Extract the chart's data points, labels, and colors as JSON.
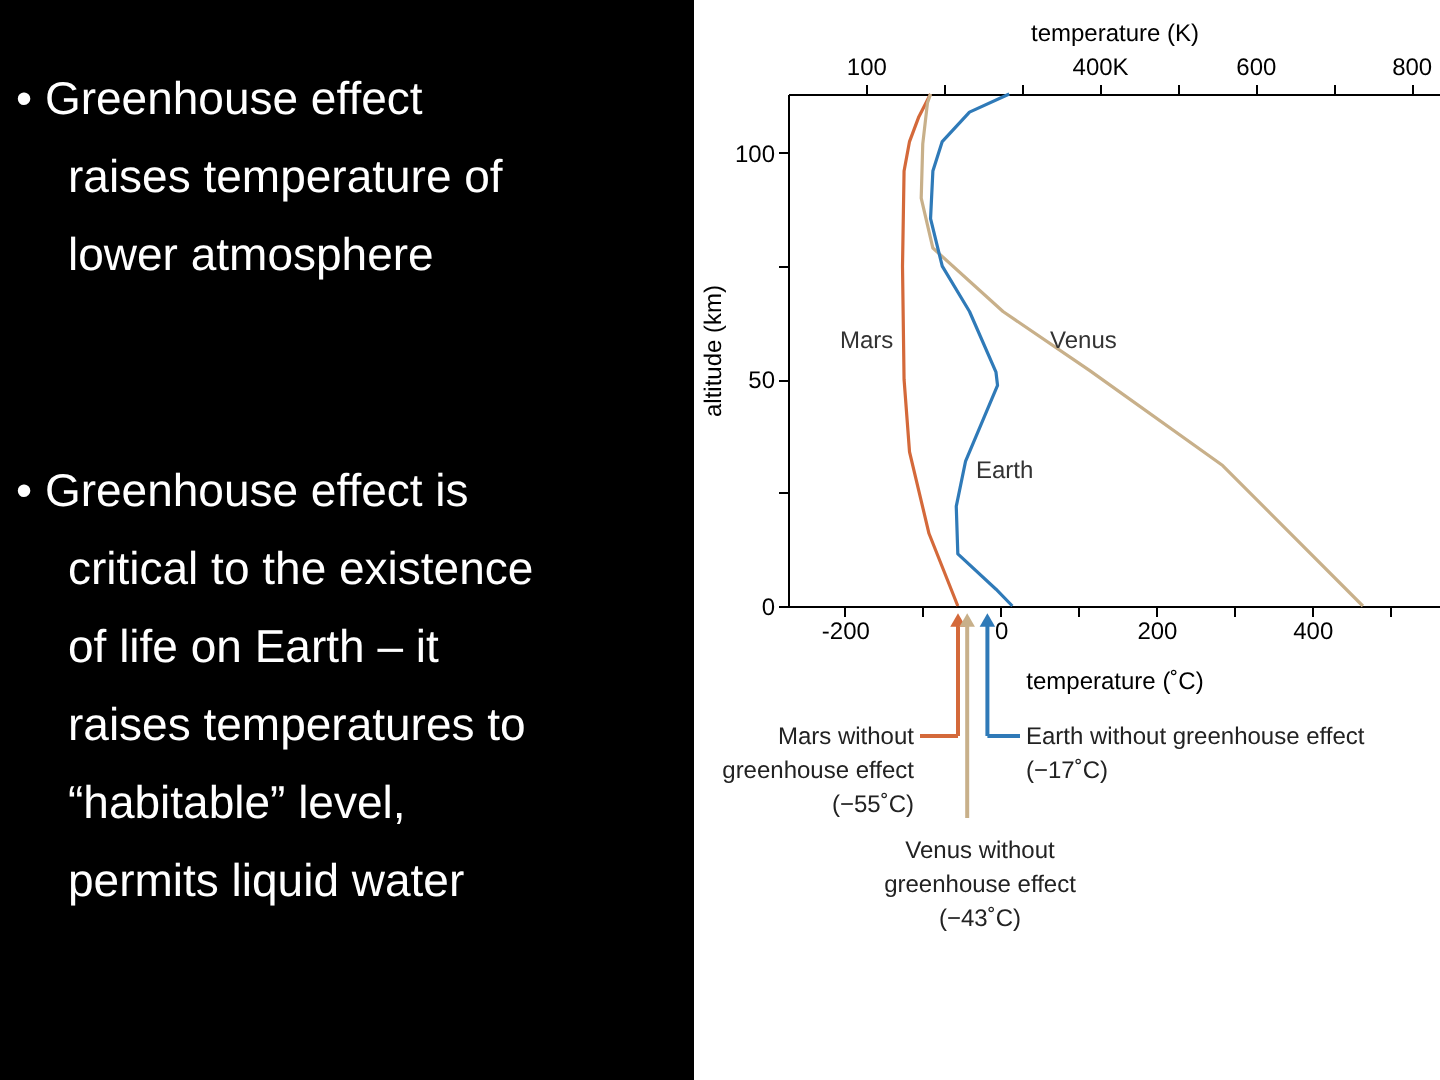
{
  "chart_data": {
    "type": "line",
    "xlabel": "temperature (˚C)",
    "x2label": "temperature (K)",
    "ylabel": "altitude (km)",
    "xlim": [
      -273,
      564
    ],
    "xticks": [
      -200,
      {
        "value": -100,
        "label": null
      },
      0,
      {
        "value": 100,
        "label": null
      },
      200,
      {
        "value": 300,
        "label": null
      },
      400,
      {
        "value": 500,
        "label": null
      }
    ],
    "x2lim": [
      0,
      837
    ],
    "x2ticks": [
      100,
      {
        "value": 200,
        "label": null
      },
      {
        "value": 300,
        "label": null
      },
      {
        "value": 400,
        "label": "400K"
      },
      {
        "value": 500,
        "label": null
      },
      600,
      {
        "value": 700,
        "label": null
      },
      800
    ],
    "ylim": [
      0,
      113
    ],
    "yticks": [
      0,
      {
        "value": 25,
        "label": null
      },
      50,
      {
        "value": 75,
        "label": null
      },
      100
    ],
    "grid": false,
    "marker": "none",
    "line_style": "solid",
    "series": [
      {
        "name": "Mars",
        "color": "#d4693a",
        "x": [
          -55,
          -92,
          -117,
          -124,
          -126,
          -124,
          -117,
          -105,
          -90
        ],
        "values": [
          0,
          16,
          34,
          50,
          75,
          96,
          102.5,
          108,
          113
        ]
      },
      {
        "name": "Venus",
        "color": "#c8b08a",
        "x": [
          465,
          285,
          114,
          3,
          -87,
          -102,
          -100,
          -94,
          -90
        ],
        "values": [
          0,
          31,
          52,
          65,
          79,
          90,
          102,
          111,
          113
        ]
      },
      {
        "name": "Earth",
        "color": "#2f7ab8",
        "x": [
          15,
          -6,
          -55,
          -57,
          -45,
          -4,
          -6,
          -40,
          -75,
          -90,
          -87,
          -75,
          -40,
          11
        ],
        "values": [
          0,
          3.7,
          11.5,
          22,
          32,
          48.7,
          51.6,
          65,
          75,
          85.5,
          96,
          102.5,
          109,
          113
        ]
      }
    ],
    "annotations": [
      "Mars without\ngreenhouse effect\n(−55˚C)",
      "Venus without\ngreenhouse effect\n(−43˚C)",
      "Earth without greenhouse effect\n(−17˚C)",
      "• Greenhouse effect\nraises temperature of\nlower atmosphere",
      "• Greenhouse effect is\ncritical to the existence\nof life on Earth – it\nraises temperatures to\n“habitable” level,\npermits liquid water"
    ]
  }
}
